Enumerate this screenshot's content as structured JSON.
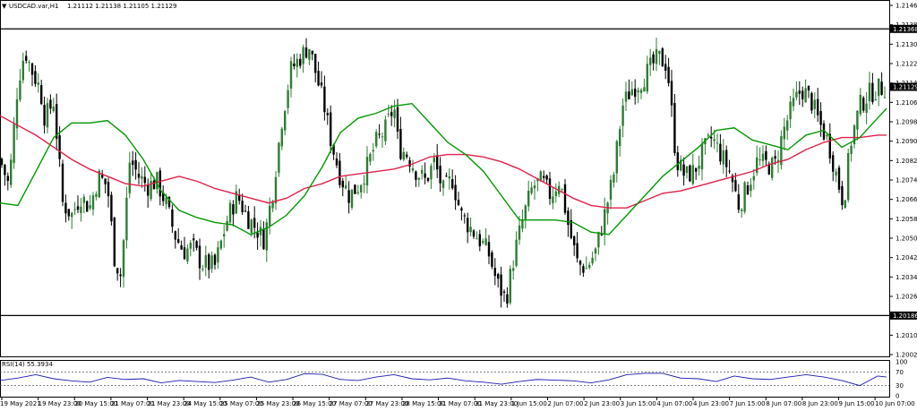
{
  "header": {
    "title": "USDCAD.var,H1",
    "ohlc": "1.21112 1.21138 1.21105 1.21129"
  },
  "rsi_label": "RSI(14) 55.3934",
  "colors": {
    "bull": "#2e7d32",
    "bear": "#000000",
    "ma_fast": "#009900",
    "ma_slow": "#e0204a",
    "rsi": "#1a1ab0",
    "level_line": "#000000",
    "price_tag_bg": "#000000",
    "price_tag_text": "#ffffff"
  },
  "chart_data": [
    {
      "type": "candlestick",
      "title": "USDCAD.var,H1",
      "symbol_ohlc": "1.21112 1.21138 1.21105 1.21129",
      "y_ticks": [
        1.21465,
        1.21385,
        1.21305,
        1.21225,
        1.21145,
        1.21065,
        1.20985,
        1.20905,
        1.20825,
        1.20745,
        1.20665,
        1.20585,
        1.20505,
        1.20425,
        1.20345,
        1.20265,
        1.20185,
        1.20105,
        1.20025
      ],
      "ylim": [
        1.20025,
        1.21465
      ],
      "price_tags": [
        "1.21368",
        "1.21129",
        "1.20186"
      ],
      "horizontal_levels": [
        1.21368,
        1.20186
      ],
      "current_price": 1.21129,
      "x_tick_labels": [
        "19 May 2021",
        "19 May 23:00",
        "20 May 15:00",
        "21 May 07:00",
        "21 May 23:00",
        "24 May 15:00",
        "25 May 07:00",
        "25 May 23:00",
        "26 May 15:00",
        "27 May 07:00",
        "27 May 23:00",
        "28 May 15:00",
        "31 May 07:00",
        "31 May 23:00",
        "1 Jun 15:00",
        "2 Jun 07:00",
        "2 Jun 23:00",
        "3 Jun 15:00",
        "4 Jun 07:00",
        "4 Jun 23:00",
        "7 Jun 15:00",
        "8 Jun 07:00",
        "8 Jun 23:00",
        "9 Jun 15:00",
        "10 Jun 07:00"
      ],
      "close_path": {
        "x": [
          0,
          10,
          20,
          28,
          35,
          45,
          50,
          60,
          70,
          80,
          90,
          100,
          110,
          120,
          128,
          135,
          145,
          155,
          165,
          175,
          185,
          195,
          205,
          215,
          225,
          240,
          255,
          265,
          275,
          285,
          295,
          305,
          315,
          325,
          335,
          345,
          355,
          362,
          370,
          380,
          390,
          400,
          410,
          420,
          430,
          440,
          445,
          455,
          465,
          475,
          485,
          495,
          505,
          515,
          525,
          535,
          545,
          555,
          565,
          575,
          585,
          595,
          605,
          615,
          625,
          635,
          645,
          655,
          665,
          675,
          685,
          695,
          705,
          715,
          725,
          735,
          745,
          755,
          765,
          775,
          785,
          795,
          805,
          815,
          825,
          835,
          845,
          855,
          865,
          875,
          885,
          895,
          905,
          915,
          925,
          935,
          942,
          950,
          960,
          970,
          980,
          990
        ],
        "y": [
          1.2083,
          1.2072,
          1.2115,
          1.2128,
          1.212,
          1.2112,
          1.21,
          1.2107,
          1.2065,
          1.206,
          1.2068,
          1.2063,
          1.2076,
          1.2072,
          1.2042,
          1.2035,
          1.2083,
          1.2076,
          1.2072,
          1.2074,
          1.2065,
          1.2052,
          1.2045,
          1.2047,
          1.204,
          1.2039,
          1.206,
          1.2068,
          1.206,
          1.2055,
          1.205,
          1.2071,
          1.21,
          1.212,
          1.2125,
          1.213,
          1.2115,
          1.2105,
          1.209,
          1.2076,
          1.2068,
          1.2072,
          1.208,
          1.209,
          1.2095,
          1.2105,
          1.2088,
          1.2085,
          1.2078,
          1.2074,
          1.2082,
          1.207,
          1.2075,
          1.206,
          1.2055,
          1.205,
          1.2045,
          1.2032,
          1.2025,
          1.2045,
          1.206,
          1.2072,
          1.2074,
          1.2068,
          1.2075,
          1.2055,
          1.204,
          1.2038,
          1.2045,
          1.206,
          1.2076,
          1.2105,
          1.2112,
          1.2115,
          1.212,
          1.2125,
          1.2122,
          1.2083,
          1.2076,
          1.2078,
          1.2086,
          1.2092,
          1.2085,
          1.2078,
          1.2064,
          1.2072,
          1.2082,
          1.2081,
          1.208,
          1.2095,
          1.2105,
          1.2112,
          1.2108,
          1.2098,
          1.209,
          1.2075,
          1.2065,
          1.209,
          1.2105,
          1.211,
          1.2112,
          1.2113
        ]
      },
      "ma_fast": {
        "x": [
          0,
          20,
          40,
          60,
          80,
          100,
          120,
          140,
          160,
          180,
          200,
          220,
          240,
          260,
          280,
          300,
          320,
          340,
          360,
          380,
          400,
          420,
          440,
          460,
          480,
          500,
          520,
          540,
          560,
          580,
          600,
          620,
          640,
          660,
          680,
          700,
          720,
          740,
          760,
          780,
          800,
          820,
          840,
          860,
          880,
          900,
          920,
          940,
          960,
          980,
          990
        ],
        "y": [
          1.2065,
          1.2064,
          1.2078,
          1.2092,
          1.2098,
          1.2098,
          1.2099,
          1.2093,
          1.2083,
          1.207,
          1.2062,
          1.2059,
          1.2057,
          1.2056,
          1.2052,
          1.2055,
          1.206,
          1.2068,
          1.208,
          1.2094,
          1.21,
          1.2102,
          1.2105,
          1.2106,
          1.2098,
          1.209,
          1.2085,
          1.2078,
          1.2068,
          1.2058,
          1.2058,
          1.2058,
          1.2057,
          1.2053,
          1.2052,
          1.206,
          1.2068,
          1.2076,
          1.2082,
          1.2088,
          1.2095,
          1.2096,
          1.2091,
          1.2089,
          1.2087,
          1.2093,
          1.2095,
          1.2088,
          1.2092,
          1.21,
          1.2104
        ]
      },
      "ma_slow": {
        "x": [
          0,
          20,
          40,
          60,
          80,
          100,
          120,
          140,
          160,
          180,
          200,
          220,
          240,
          260,
          280,
          300,
          320,
          340,
          360,
          380,
          400,
          420,
          440,
          460,
          480,
          500,
          520,
          540,
          560,
          580,
          600,
          620,
          640,
          660,
          680,
          700,
          720,
          740,
          760,
          780,
          800,
          820,
          840,
          860,
          880,
          900,
          920,
          940,
          960,
          980,
          990
        ],
        "y": [
          1.2101,
          1.2097,
          1.2093,
          1.2088,
          1.2083,
          1.2079,
          1.2076,
          1.2073,
          1.2072,
          1.2074,
          1.2076,
          1.2074,
          1.2071,
          1.2069,
          1.2067,
          1.2065,
          1.2067,
          1.2071,
          1.2073,
          1.2076,
          1.2077,
          1.2078,
          1.2079,
          1.2081,
          1.2084,
          1.2085,
          1.2085,
          1.2084,
          1.2082,
          1.2079,
          1.2075,
          1.2071,
          1.2067,
          1.2064,
          1.2063,
          1.2063,
          1.2066,
          1.2069,
          1.207,
          1.2072,
          1.2074,
          1.2076,
          1.2078,
          1.2081,
          1.2083,
          1.2087,
          1.209,
          1.2092,
          1.2092,
          1.2093,
          1.2093
        ]
      }
    },
    {
      "type": "line",
      "title": "RSI(14) 55.3934",
      "y_ticks": [
        100,
        70,
        30,
        0
      ],
      "levels": [
        70,
        30
      ],
      "ylim": [
        0,
        100
      ],
      "series": [
        {
          "name": "RSI(14)",
          "x": [
            0,
            20,
            40,
            60,
            80,
            100,
            120,
            140,
            160,
            180,
            200,
            220,
            240,
            260,
            280,
            300,
            320,
            340,
            360,
            380,
            400,
            420,
            440,
            460,
            480,
            500,
            520,
            540,
            560,
            580,
            600,
            620,
            640,
            660,
            680,
            700,
            720,
            740,
            760,
            780,
            800,
            820,
            840,
            860,
            880,
            900,
            920,
            940,
            960,
            980,
            990
          ],
          "values": [
            45,
            52,
            62,
            50,
            44,
            40,
            54,
            48,
            50,
            38,
            45,
            42,
            39,
            46,
            55,
            40,
            48,
            65,
            63,
            48,
            45,
            55,
            62,
            50,
            47,
            52,
            44,
            40,
            34,
            42,
            48,
            46,
            44,
            38,
            47,
            62,
            66,
            66,
            52,
            50,
            42,
            58,
            50,
            48,
            55,
            62,
            55,
            45,
            30,
            58,
            55
          ]
        }
      ]
    }
  ]
}
